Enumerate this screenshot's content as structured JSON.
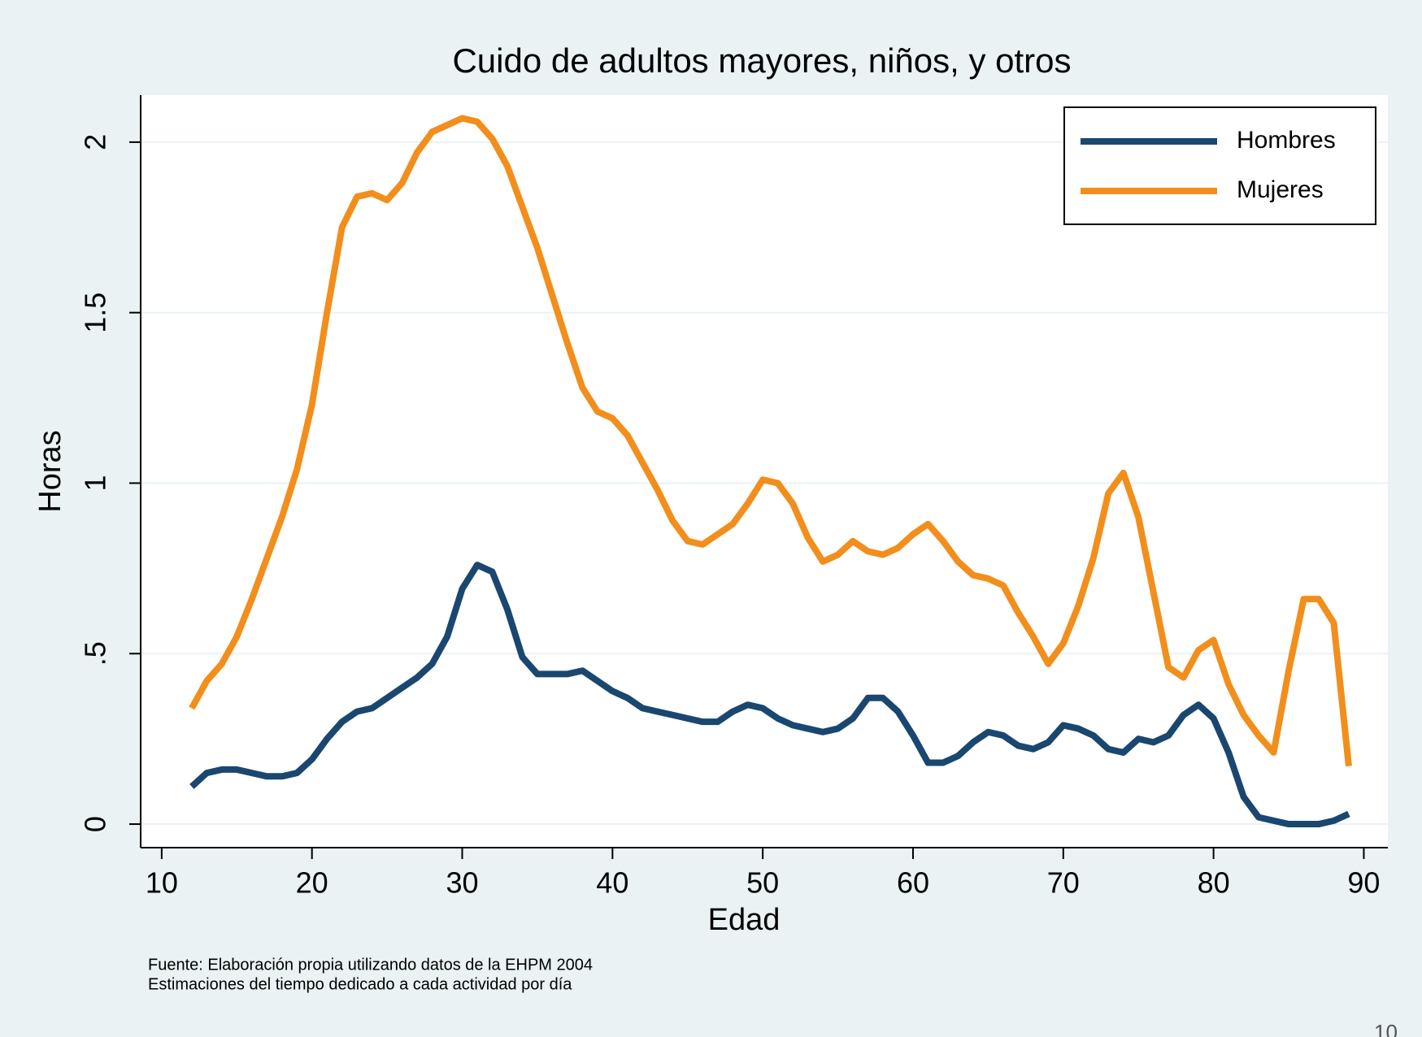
{
  "chart_data": {
    "type": "line",
    "title": "Cuido de adultos mayores, niños, y otros",
    "xlabel": "Edad",
    "ylabel": "Horas",
    "notes": [
      "Fuente: Elaboración propia utilizando datos de la EHPM 2004",
      "Estimaciones del tiempo dedicado a cada actividad por día"
    ],
    "page_number": "10",
    "x": [
      12,
      13,
      14,
      15,
      16,
      17,
      18,
      19,
      20,
      21,
      22,
      23,
      24,
      25,
      26,
      27,
      28,
      29,
      30,
      31,
      32,
      33,
      34,
      35,
      36,
      37,
      38,
      39,
      40,
      41,
      42,
      43,
      44,
      45,
      46,
      47,
      48,
      49,
      50,
      51,
      52,
      53,
      54,
      55,
      56,
      57,
      58,
      59,
      60,
      61,
      62,
      63,
      64,
      65,
      66,
      67,
      68,
      69,
      70,
      71,
      72,
      73,
      74,
      75,
      76,
      77,
      78,
      79,
      80,
      81,
      82,
      83,
      84,
      85,
      86,
      87,
      88,
      89
    ],
    "series": [
      {
        "name": "Hombres",
        "color": "#1a476f",
        "values": [
          0.11,
          0.15,
          0.16,
          0.16,
          0.15,
          0.14,
          0.14,
          0.15,
          0.19,
          0.25,
          0.3,
          0.33,
          0.34,
          0.37,
          0.4,
          0.43,
          0.47,
          0.55,
          0.69,
          0.76,
          0.74,
          0.63,
          0.49,
          0.44,
          0.44,
          0.44,
          0.45,
          0.42,
          0.39,
          0.37,
          0.34,
          0.33,
          0.32,
          0.31,
          0.3,
          0.3,
          0.33,
          0.35,
          0.34,
          0.31,
          0.29,
          0.28,
          0.27,
          0.28,
          0.31,
          0.37,
          0.37,
          0.33,
          0.26,
          0.18,
          0.18,
          0.2,
          0.24,
          0.27,
          0.26,
          0.23,
          0.22,
          0.24,
          0.29,
          0.28,
          0.26,
          0.22,
          0.21,
          0.25,
          0.24,
          0.26,
          0.32,
          0.35,
          0.31,
          0.21,
          0.08,
          0.02,
          0.01,
          0,
          0,
          0,
          0.01,
          0.03
        ]
      },
      {
        "name": "Mujeres",
        "color": "#f28e1c",
        "values": [
          0.34,
          0.42,
          0.47,
          0.55,
          0.66,
          0.78,
          0.9,
          1.04,
          1.23,
          1.5,
          1.75,
          1.84,
          1.85,
          1.83,
          1.88,
          1.97,
          2.03,
          2.05,
          2.07,
          2.06,
          2.01,
          1.93,
          1.81,
          1.69,
          1.55,
          1.41,
          1.28,
          1.21,
          1.19,
          1.14,
          1.06,
          0.98,
          0.89,
          0.83,
          0.82,
          0.85,
          0.88,
          0.94,
          1.01,
          1.0,
          0.94,
          0.84,
          0.77,
          0.79,
          0.83,
          0.8,
          0.79,
          0.81,
          0.85,
          0.88,
          0.83,
          0.77,
          0.73,
          0.72,
          0.7,
          0.62,
          0.55,
          0.47,
          0.53,
          0.64,
          0.78,
          0.97,
          1.03,
          0.9,
          0.68,
          0.46,
          0.43,
          0.51,
          0.54,
          0.41,
          0.32,
          0.26,
          0.21,
          0.45,
          0.66,
          0.66,
          0.59,
          0.17
        ]
      }
    ],
    "xlim": [
      8.6,
      91.6
    ],
    "xticks": [
      10,
      20,
      30,
      40,
      50,
      60,
      70,
      80,
      90
    ],
    "ylim": [
      -0.069,
      2.138
    ],
    "yticks": [
      0,
      {
        "value": 0.5,
        "label": ".5"
      },
      1,
      1.5,
      2
    ],
    "grid": true,
    "legend": "upper right"
  }
}
